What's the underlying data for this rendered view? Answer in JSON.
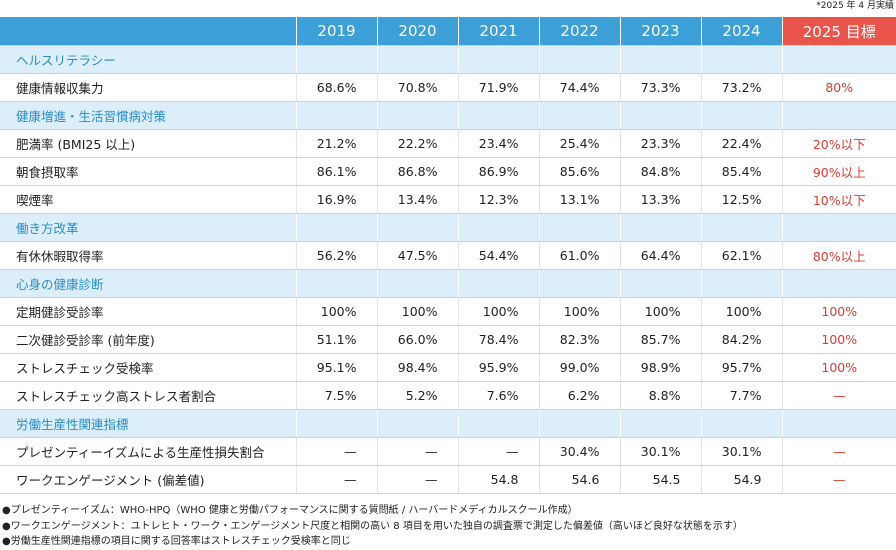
{
  "note": "*2025 年 4 月実績",
  "table": {
    "header": {
      "label": "",
      "years": [
        "2019",
        "2020",
        "2021",
        "2022",
        "2023",
        "2024"
      ],
      "target": "2025 目標"
    },
    "sections": [
      {
        "title": "ヘルスリテラシー",
        "rows": [
          {
            "label": "健康情報収集力",
            "values": [
              "68.6%",
              "70.8%",
              "71.9%",
              "74.4%",
              "73.3%",
              "73.2%"
            ],
            "target": "80%"
          }
        ]
      },
      {
        "title": "健康増進・生活習慣病対策",
        "rows": [
          {
            "label": "肥満率 (BMI25 以上)",
            "values": [
              "21.2%",
              "22.2%",
              "23.4%",
              "25.4%",
              "23.3%",
              "22.4%"
            ],
            "target": "20%以下"
          },
          {
            "label": "朝食摂取率",
            "values": [
              "86.1%",
              "86.8%",
              "86.9%",
              "85.6%",
              "84.8%",
              "85.4%"
            ],
            "target": "90%以上"
          },
          {
            "label": "喫煙率",
            "values": [
              "16.9%",
              "13.4%",
              "12.3%",
              "13.1%",
              "13.3%",
              "12.5%"
            ],
            "target": "10%以下"
          }
        ]
      },
      {
        "title": "働き方改革",
        "rows": [
          {
            "label": "有休休暇取得率",
            "values": [
              "56.2%",
              "47.5%",
              "54.4%",
              "61.0%",
              "64.4%",
              "62.1%"
            ],
            "target": "80%以上"
          }
        ]
      },
      {
        "title": "心身の健康診断",
        "rows": [
          {
            "label": "定期健診受診率",
            "values": [
              "100%",
              "100%",
              "100%",
              "100%",
              "100%",
              "100%"
            ],
            "target": "100%"
          },
          {
            "label": "二次健診受診率 (前年度)",
            "values": [
              "51.1%",
              "66.0%",
              "78.4%",
              "82.3%",
              "85.7%",
              "84.2%"
            ],
            "target": "100%"
          },
          {
            "label": "ストレスチェック受検率",
            "values": [
              "95.1%",
              "98.4%",
              "95.9%",
              "99.0%",
              "98.9%",
              "95.7%"
            ],
            "target": "100%"
          },
          {
            "label": "ストレスチェック高ストレス者割合",
            "values": [
              "7.5%",
              "5.2%",
              "7.6%",
              "6.2%",
              "8.8%",
              "7.7%"
            ],
            "target": "—"
          }
        ]
      },
      {
        "title": "労働生産性関連指標",
        "rows": [
          {
            "label": "プレゼンティーイズムによる生産性損失割合",
            "values": [
              "—",
              "—",
              "—",
              "30.4%",
              "30.1%",
              "30.1%"
            ],
            "target": "—"
          },
          {
            "label": "ワークエンゲージメント (偏差値)",
            "values": [
              "—",
              "—",
              "54.8",
              "54.6",
              "54.5",
              "54.9"
            ],
            "target": "—"
          }
        ]
      }
    ]
  },
  "footnotes": [
    "●プレゼンティーイズム：WHO-HPQ（WHO 健康と労働パフォーマンスに関する質問紙 / ハーバードメディカルスクール作成）",
    "●ワークエンゲージメント：ユトレヒト・ワーク・エンゲージメント尺度と相関の高い 8 項目を用いた独自の調査票で測定した偏差値（高いほど良好な状態を示す）",
    "●労働生産性関連指標の項目に関する回答率はストレスチェック受検率と同じ"
  ]
}
